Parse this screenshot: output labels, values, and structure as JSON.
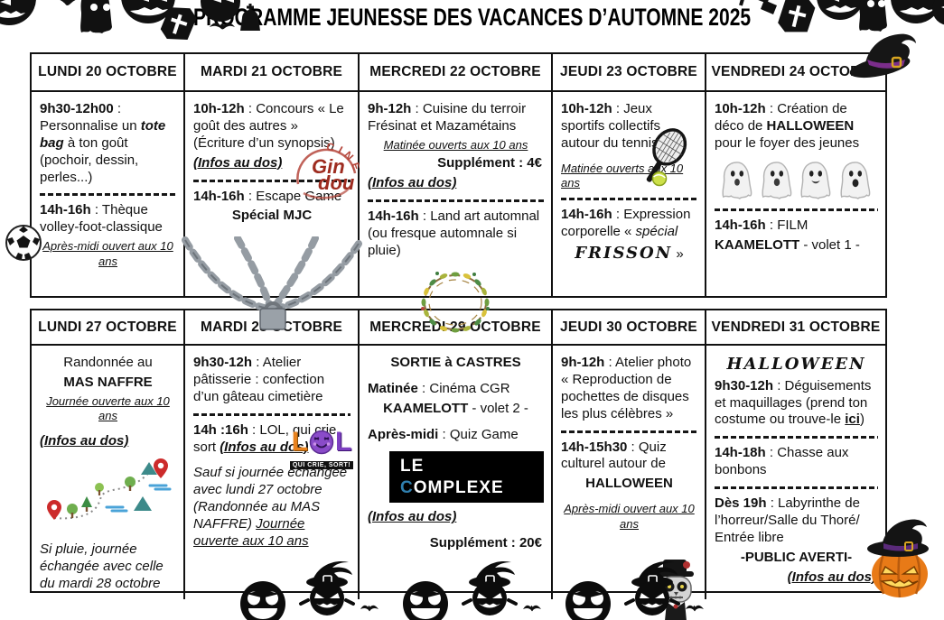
{
  "page": {
    "title": "PROGRAMME JEUNESSE DES VACANCES D’AUTOMNE 2025",
    "decorations": [
      "halloween-banner-left",
      "halloween-banner-right",
      "witch-hat-icon",
      "gremlin-pumpkin-row",
      "bat-icons"
    ]
  },
  "logos": {
    "gindou_arc": "CINÉMA",
    "gindou_line1": "Gin",
    "gindou_line2": "dou",
    "lol_l1": "L",
    "lol_l2": "L",
    "lol_banner": "QUI CRIE, SORT!",
    "complexe_pre": "LE ",
    "complexe_c": "C",
    "complexe_rest": "OMPLEXE"
  },
  "tables": [
    {
      "headers": [
        "LUNDI 20 OCTOBRE",
        "MARDI 21 OCTOBRE",
        "MERCREDI 22 OCTOBRE",
        "JEUDI 23 OCTOBRE",
        "VENDREDI 24 OCTOBRE"
      ],
      "cells": [
        {
          "blocks": [
            {
              "seg": [
                {
                  "t": "9h30-12h00",
                  "s": "b"
                },
                {
                  "t": " : Personnalise un "
                },
                {
                  "t": "tote bag",
                  "s": "b i"
                },
                {
                  "t": " à ton goût (pochoir, dessin, perles...)"
                }
              ]
            },
            {
              "type": "dashes"
            },
            {
              "seg": [
                {
                  "t": "14h-16h",
                  "s": "b"
                },
                {
                  "t": " : Thèque volley-foot-classique"
                }
              ]
            },
            {
              "cls": "center small",
              "seg": [
                {
                  "t": "Après-midi ouvert aux 10 ans",
                  "s": "i u"
                }
              ]
            }
          ],
          "icons": [
            "soccer-ball"
          ]
        },
        {
          "blocks": [
            {
              "seg": [
                {
                  "t": "10h-12h",
                  "s": "b"
                },
                {
                  "t": " : Concours « Le goût des autres » (Écriture d’un synopsis)"
                }
              ]
            },
            {
              "seg": [
                {
                  "t": "(Infos au dos)",
                  "s": "b i u"
                }
              ]
            },
            {
              "type": "dashes"
            },
            {
              "seg": [
                {
                  "t": "14h-16h",
                  "s": "b"
                },
                {
                  "t": " : Escape Game"
                }
              ]
            },
            {
              "cls": "center",
              "seg": [
                {
                  "t": "Spécial MJC",
                  "s": "b"
                }
              ]
            }
          ],
          "icons": [
            "gindou-logo",
            "chains-padlock"
          ]
        },
        {
          "blocks": [
            {
              "seg": [
                {
                  "t": "9h-12h",
                  "s": "b"
                },
                {
                  "t": " : Cuisine du terroir Frésinat et Mazamétains"
                }
              ]
            },
            {
              "cls": "center small",
              "seg": [
                {
                  "t": "Matinée ouverts aux 10 ans",
                  "s": "i u"
                }
              ]
            },
            {
              "cls": "right",
              "seg": [
                {
                  "t": "Supplément : 4€",
                  "s": "b"
                }
              ]
            },
            {
              "seg": [
                {
                  "t": "(Infos au dos)",
                  "s": "b i u"
                }
              ]
            },
            {
              "type": "dashes"
            },
            {
              "seg": [
                {
                  "t": "14h-16h",
                  "s": "b"
                },
                {
                  "t": " : Land art automnal (ou fresque automnale si pluie)"
                }
              ]
            }
          ],
          "icons": [
            "wreath"
          ]
        },
        {
          "blocks": [
            {
              "seg": [
                {
                  "t": "10h-12h",
                  "s": "b"
                },
                {
                  "t": " : Jeux sportifs collectifs autour du tennis"
                }
              ]
            },
            {
              "cls": "small gap-top",
              "seg": [
                {
                  "t": "Matinée ouverts aux 10 ans",
                  "s": "i u"
                }
              ]
            },
            {
              "type": "dashes"
            },
            {
              "seg": [
                {
                  "t": "14h-16h",
                  "s": "b"
                },
                {
                  "t": " : Expression corporelle « "
                },
                {
                  "t": "spécial",
                  "s": "i"
                }
              ]
            },
            {
              "cls": "center",
              "seg": [
                {
                  "t": "FRISSON",
                  "s": "spooky"
                },
                {
                  "t": " »"
                }
              ]
            }
          ],
          "icons": [
            "tennis-racket"
          ]
        },
        {
          "blocks": [
            {
              "seg": [
                {
                  "t": "10h-12h",
                  "s": "b"
                },
                {
                  "t": " : Création de déco de "
                },
                {
                  "t": "HALLOWEEN",
                  "s": "b"
                },
                {
                  "t": " pour le foyer des jeunes"
                }
              ]
            },
            {
              "type": "icon",
              "name": "ghosts-row"
            },
            {
              "type": "dashes"
            },
            {
              "seg": [
                {
                  "t": "14h-16h",
                  "s": "b"
                },
                {
                  "t": " : FILM"
                }
              ]
            },
            {
              "seg": [
                {
                  "t": "KAAMELOTT",
                  "s": "b"
                },
                {
                  "t": " - volet 1 -"
                }
              ]
            }
          ],
          "icons": []
        }
      ]
    },
    {
      "headers": [
        "LUNDI 27 OCTOBRE",
        "MARDI 28 OCTOBRE",
        "MERCREDI 29 OCTOBRE",
        "JEUDI 30 OCTOBRE",
        "VENDREDI 31 OCTOBRE"
      ],
      "cells": [
        {
          "blocks": [
            {
              "cls": "center",
              "seg": [
                {
                  "t": "Randonnée au"
                }
              ]
            },
            {
              "cls": "center",
              "seg": [
                {
                  "t": "MAS NAFFRE",
                  "s": "b"
                }
              ]
            },
            {
              "cls": "center small",
              "seg": [
                {
                  "t": "Journée ouverte aux 10 ans",
                  "s": "i u"
                }
              ]
            },
            {
              "cls": "gap-top",
              "seg": [
                {
                  "t": "(Infos au dos)",
                  "s": "b i u"
                }
              ]
            },
            {
              "type": "icon",
              "name": "hiking-trail"
            },
            {
              "cls": "gap-top",
              "seg": [
                {
                  "t": "Si pluie, journée échangée avec celle du mardi 28 octobre",
                  "s": "i"
                }
              ]
            }
          ],
          "icons": []
        },
        {
          "blocks": [
            {
              "seg": [
                {
                  "t": "9h30-12h",
                  "s": "b"
                },
                {
                  "t": " :  Atelier pâtisserie : confection d’un gâteau cimetière"
                }
              ]
            },
            {
              "type": "dashes"
            },
            {
              "seg": [
                {
                  "t": "14h :16h",
                  "s": "b"
                },
                {
                  "t": " : LOL, qui crie sort "
                },
                {
                  "t": "(Infos au dos)",
                  "s": "b i u"
                }
              ]
            },
            {
              "cls": "gap-top",
              "seg": [
                {
                  "t": "Sauf si journée échangée avec lundi 27 octobre (Randonnée au MAS NAFFRE) ",
                  "s": "i"
                },
                {
                  "t": "Journée ouverte aux 10 ans",
                  "s": "i u"
                }
              ]
            }
          ],
          "icons": [
            "lol-logo"
          ]
        },
        {
          "blocks": [
            {
              "cls": "center",
              "seg": [
                {
                  "t": "SORTIE à CASTRES",
                  "s": "b"
                }
              ]
            },
            {
              "cls": "gap-top",
              "seg": [
                {
                  "t": "Matinée",
                  "s": "b"
                },
                {
                  "t": " : Cinéma CGR"
                }
              ]
            },
            {
              "cls": "center",
              "seg": [
                {
                  "t": "KAAMELOTT",
                  "s": "b"
                },
                {
                  "t": " - volet 2 -"
                }
              ]
            },
            {
              "cls": "gap-top",
              "seg": [
                {
                  "t": "Après-midi",
                  "s": "b"
                },
                {
                  "t": " : Quiz Game"
                }
              ]
            },
            {
              "type": "icon",
              "name": "complexe-logo"
            },
            {
              "seg": [
                {
                  "t": "(Infos au dos)",
                  "s": "b i u"
                }
              ]
            },
            {
              "cls": "right gap-top",
              "seg": [
                {
                  "t": "Supplément : 20€",
                  "s": "b"
                }
              ]
            }
          ],
          "icons": []
        },
        {
          "blocks": [
            {
              "seg": [
                {
                  "t": "9h-12h",
                  "s": "b"
                },
                {
                  "t": " : Atelier photo « Reproduction de pochettes de disques les plus célèbres »"
                }
              ]
            },
            {
              "type": "dashes"
            },
            {
              "seg": [
                {
                  "t": "14h-15h30",
                  "s": "b"
                },
                {
                  "t": " : Quiz culturel autour de"
                }
              ]
            },
            {
              "cls": "center",
              "seg": [
                {
                  "t": "HALLOWEEN",
                  "s": "b"
                }
              ]
            },
            {
              "cls": "center small gap-top",
              "seg": [
                {
                  "t": "Après-midi ouvert aux 10 ans",
                  "s": "i u"
                }
              ]
            }
          ],
          "icons": [
            "skeleton"
          ]
        },
        {
          "blocks": [
            {
              "cls": "center",
              "seg": [
                {
                  "t": "HALLOWEEN",
                  "s": "spooky"
                }
              ]
            },
            {
              "seg": [
                {
                  "t": "9h30-12h",
                  "s": "b"
                },
                {
                  "t": " : Déguisements et maquillages (prend ton costume ou trouve-le "
                },
                {
                  "t": "ici",
                  "s": "b u"
                },
                {
                  "t": ")"
                }
              ]
            },
            {
              "type": "dashes"
            },
            {
              "seg": [
                {
                  "t": "14h-18h",
                  "s": "b"
                },
                {
                  "t": " : Chasse aux bonbons"
                }
              ]
            },
            {
              "type": "dashes"
            },
            {
              "seg": [
                {
                  "t": "Dès 19h",
                  "s": "b"
                },
                {
                  "t": " : Labyrinthe de l’horreur/Salle du Thoré/ Entrée libre"
                }
              ]
            },
            {
              "cls": "center",
              "seg": [
                {
                  "t": "-PUBLIC AVERTI-",
                  "s": "b"
                }
              ]
            },
            {
              "cls": "right",
              "seg": [
                {
                  "t": "(Infos au dos)",
                  "s": "b i u"
                }
              ]
            }
          ],
          "icons": [
            "pumpkin-hat"
          ]
        }
      ]
    }
  ]
}
